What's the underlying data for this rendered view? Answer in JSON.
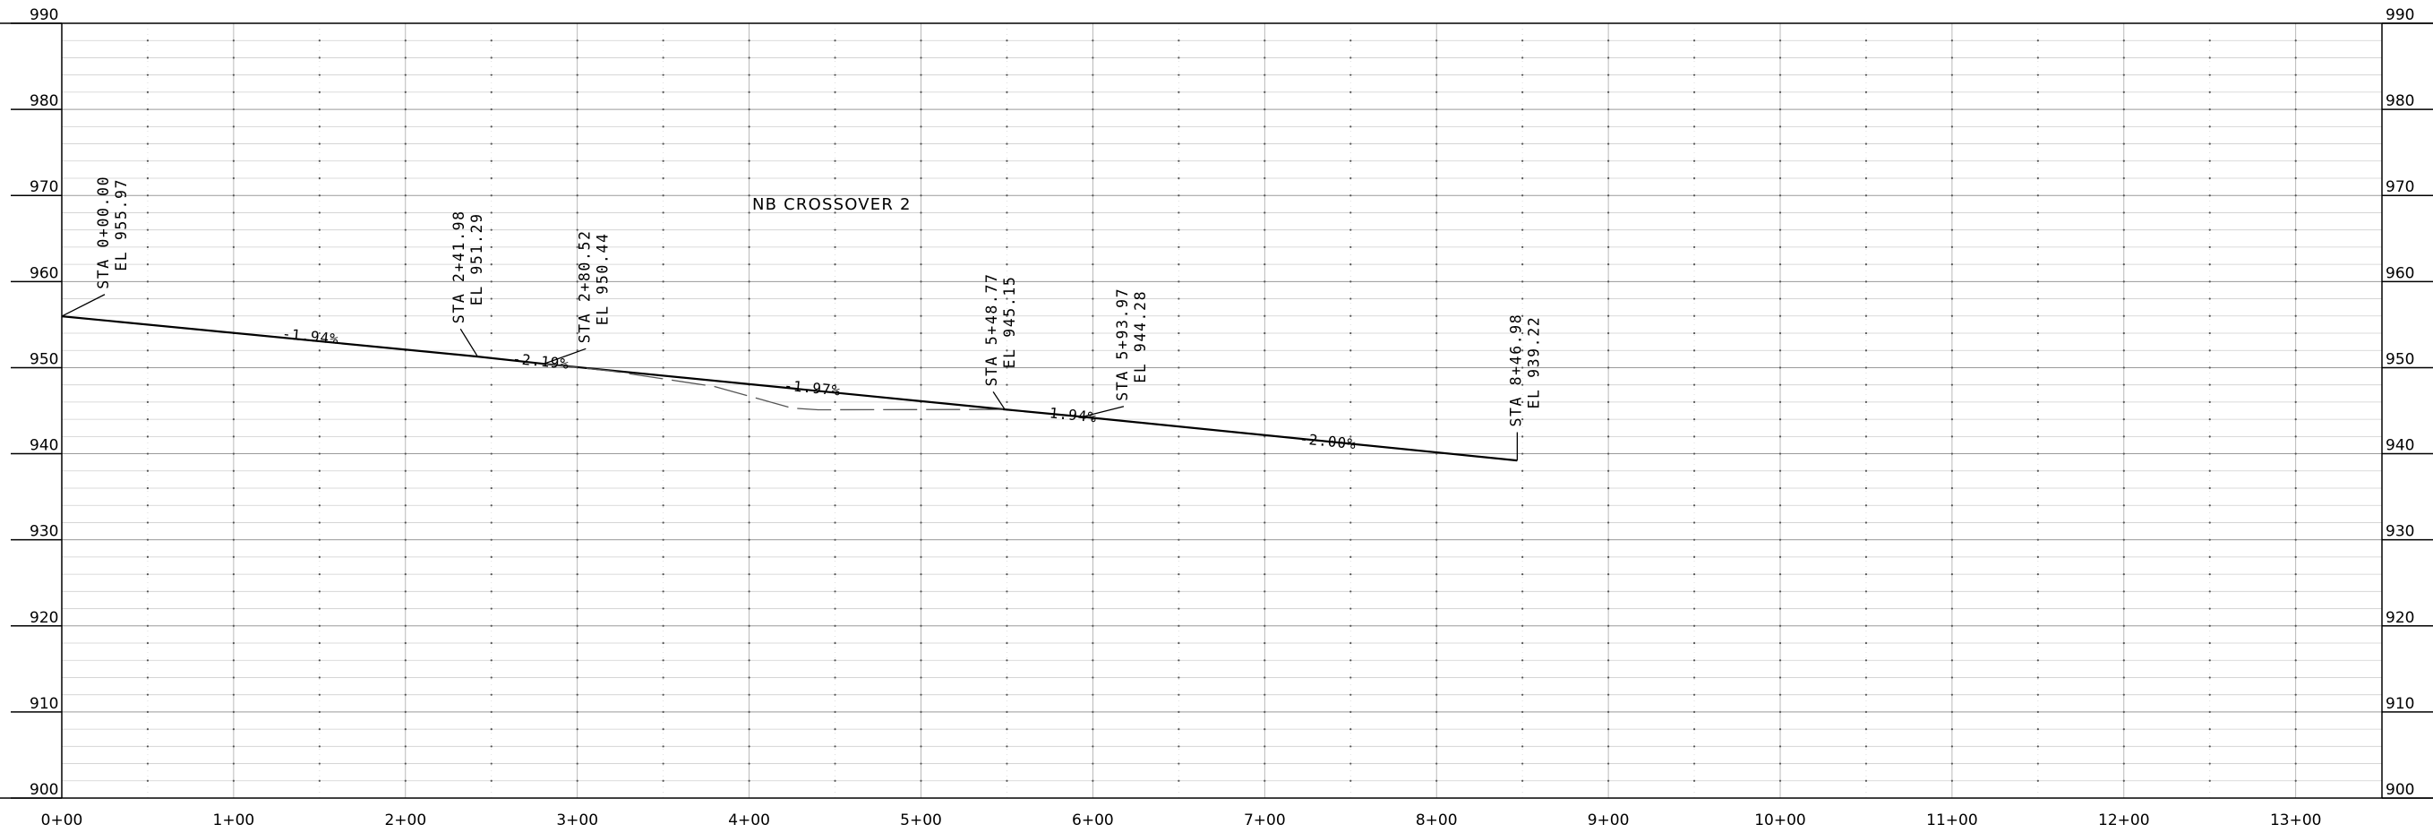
{
  "chart_data": {
    "type": "line",
    "title": "NB  CROSSOVER  2",
    "x_ticks": [
      "0+00",
      "1+00",
      "2+00",
      "3+00",
      "4+00",
      "5+00",
      "6+00",
      "7+00",
      "8+00",
      "9+00",
      "10+00",
      "11+00",
      "12+00",
      "13+00"
    ],
    "y_ticks": [
      "990",
      "980",
      "970",
      "960",
      "950",
      "940",
      "930",
      "920",
      "910",
      "900"
    ],
    "xlim": [
      0,
      1350
    ],
    "ylim": [
      900,
      990
    ],
    "grid": true,
    "series": [
      {
        "style": "solid",
        "points": [
          {
            "x": 0,
            "y": 955.97
          },
          {
            "x": 241.98,
            "y": 951.29
          },
          {
            "x": 280.52,
            "y": 950.44
          },
          {
            "x": 548.77,
            "y": 945.15
          },
          {
            "x": 593.97,
            "y": 944.28
          },
          {
            "x": 846.98,
            "y": 939.22
          }
        ]
      },
      {
        "style": "dashed",
        "points": [
          {
            "x": 280.52,
            "y": 950.44
          },
          {
            "x": 320,
            "y": 949.6
          },
          {
            "x": 380,
            "y": 947.8
          },
          {
            "x": 425,
            "y": 945.3
          },
          {
            "x": 440,
            "y": 945.1
          },
          {
            "x": 548.77,
            "y": 945.15
          }
        ]
      }
    ],
    "stations": [
      {
        "sta": "STA 0+00.00",
        "el": "EL 955.97",
        "x": 0,
        "y": 955.97,
        "lx": 25,
        "ly": 958.5
      },
      {
        "sta": "STA 2+41.98",
        "el": "EL 951.29",
        "x": 241.98,
        "y": 951.29,
        "lx": 232,
        "ly": 954.5
      },
      {
        "sta": "STA 2+80.52",
        "el": "EL 950.44",
        "x": 280.52,
        "y": 950.44,
        "lx": 305,
        "ly": 952.2
      },
      {
        "sta": "STA 5+48.77",
        "el": "EL 945.15",
        "x": 548.77,
        "y": 945.15,
        "lx": 542,
        "ly": 947.2
      },
      {
        "sta": "STA 5+93.97",
        "el": "EL 944.28",
        "x": 593.97,
        "y": 944.28,
        "lx": 618,
        "ly": 945.5
      },
      {
        "sta": "STA 8+46.98",
        "el": "EL 939.22",
        "x": 846.98,
        "y": 939.22,
        "lx": 846.98,
        "ly": 942.5
      }
    ],
    "grades": [
      {
        "text": "-1.94%",
        "x": 128,
        "y": 953.4
      },
      {
        "text": "-2.19%",
        "x": 262,
        "y": 950.5
      },
      {
        "text": "-1.97%",
        "x": 420,
        "y": 947.4
      },
      {
        "text": "-1.94%",
        "x": 569,
        "y": 944.3
      },
      {
        "text": "-2.00%",
        "x": 720,
        "y": 941.2
      }
    ]
  }
}
